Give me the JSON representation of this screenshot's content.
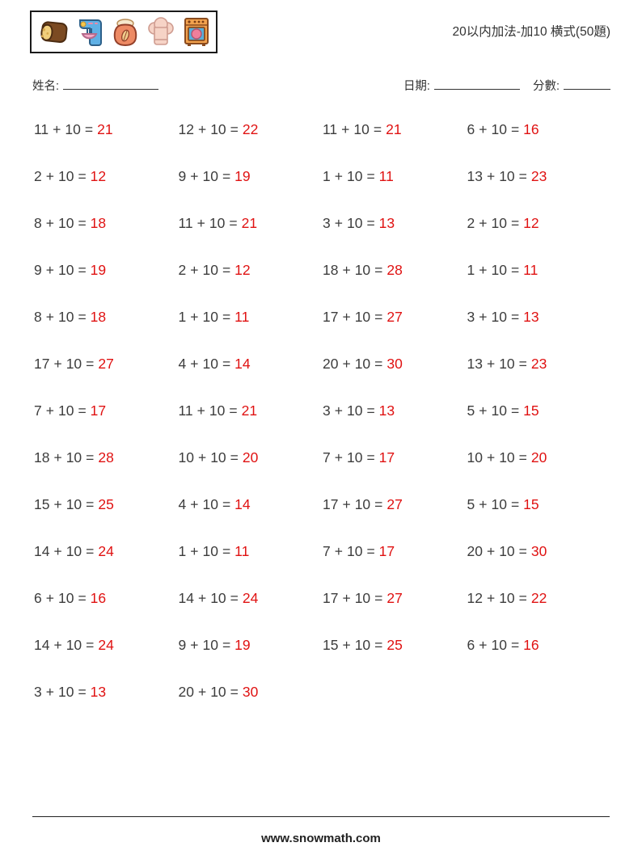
{
  "header": {
    "title": "20以内加法-加10 横式(50題)",
    "icons": [
      "bread-icon",
      "mixer-icon",
      "flour-bag-icon",
      "chef-hat-icon",
      "oven-icon"
    ]
  },
  "fields": {
    "name_label": "姓名:",
    "date_label": "日期:",
    "score_label": "分數:"
  },
  "operators": {
    "plus": "+",
    "equals": "="
  },
  "colors": {
    "answer_red": "#e01212",
    "text": "#3d3d3d"
  },
  "problems": [
    {
      "a": 11,
      "b": 10,
      "answer": 21
    },
    {
      "a": 12,
      "b": 10,
      "answer": 22
    },
    {
      "a": 11,
      "b": 10,
      "answer": 21
    },
    {
      "a": 6,
      "b": 10,
      "answer": 16
    },
    {
      "a": 2,
      "b": 10,
      "answer": 12
    },
    {
      "a": 9,
      "b": 10,
      "answer": 19
    },
    {
      "a": 1,
      "b": 10,
      "answer": 11
    },
    {
      "a": 13,
      "b": 10,
      "answer": 23
    },
    {
      "a": 8,
      "b": 10,
      "answer": 18
    },
    {
      "a": 11,
      "b": 10,
      "answer": 21
    },
    {
      "a": 3,
      "b": 10,
      "answer": 13
    },
    {
      "a": 2,
      "b": 10,
      "answer": 12
    },
    {
      "a": 9,
      "b": 10,
      "answer": 19
    },
    {
      "a": 2,
      "b": 10,
      "answer": 12
    },
    {
      "a": 18,
      "b": 10,
      "answer": 28
    },
    {
      "a": 1,
      "b": 10,
      "answer": 11
    },
    {
      "a": 8,
      "b": 10,
      "answer": 18
    },
    {
      "a": 1,
      "b": 10,
      "answer": 11
    },
    {
      "a": 17,
      "b": 10,
      "answer": 27
    },
    {
      "a": 3,
      "b": 10,
      "answer": 13
    },
    {
      "a": 17,
      "b": 10,
      "answer": 27
    },
    {
      "a": 4,
      "b": 10,
      "answer": 14
    },
    {
      "a": 20,
      "b": 10,
      "answer": 30
    },
    {
      "a": 13,
      "b": 10,
      "answer": 23
    },
    {
      "a": 7,
      "b": 10,
      "answer": 17
    },
    {
      "a": 11,
      "b": 10,
      "answer": 21
    },
    {
      "a": 3,
      "b": 10,
      "answer": 13
    },
    {
      "a": 5,
      "b": 10,
      "answer": 15
    },
    {
      "a": 18,
      "b": 10,
      "answer": 28
    },
    {
      "a": 10,
      "b": 10,
      "answer": 20
    },
    {
      "a": 7,
      "b": 10,
      "answer": 17
    },
    {
      "a": 10,
      "b": 10,
      "answer": 20
    },
    {
      "a": 15,
      "b": 10,
      "answer": 25
    },
    {
      "a": 4,
      "b": 10,
      "answer": 14
    },
    {
      "a": 17,
      "b": 10,
      "answer": 27
    },
    {
      "a": 5,
      "b": 10,
      "answer": 15
    },
    {
      "a": 14,
      "b": 10,
      "answer": 24
    },
    {
      "a": 1,
      "b": 10,
      "answer": 11
    },
    {
      "a": 7,
      "b": 10,
      "answer": 17
    },
    {
      "a": 20,
      "b": 10,
      "answer": 30
    },
    {
      "a": 6,
      "b": 10,
      "answer": 16
    },
    {
      "a": 14,
      "b": 10,
      "answer": 24
    },
    {
      "a": 17,
      "b": 10,
      "answer": 27
    },
    {
      "a": 12,
      "b": 10,
      "answer": 22
    },
    {
      "a": 14,
      "b": 10,
      "answer": 24
    },
    {
      "a": 9,
      "b": 10,
      "answer": 19
    },
    {
      "a": 15,
      "b": 10,
      "answer": 25
    },
    {
      "a": 6,
      "b": 10,
      "answer": 16
    },
    {
      "a": 3,
      "b": 10,
      "answer": 13
    },
    {
      "a": 20,
      "b": 10,
      "answer": 30
    }
  ],
  "footer": {
    "url": "www.snowmath.com"
  }
}
